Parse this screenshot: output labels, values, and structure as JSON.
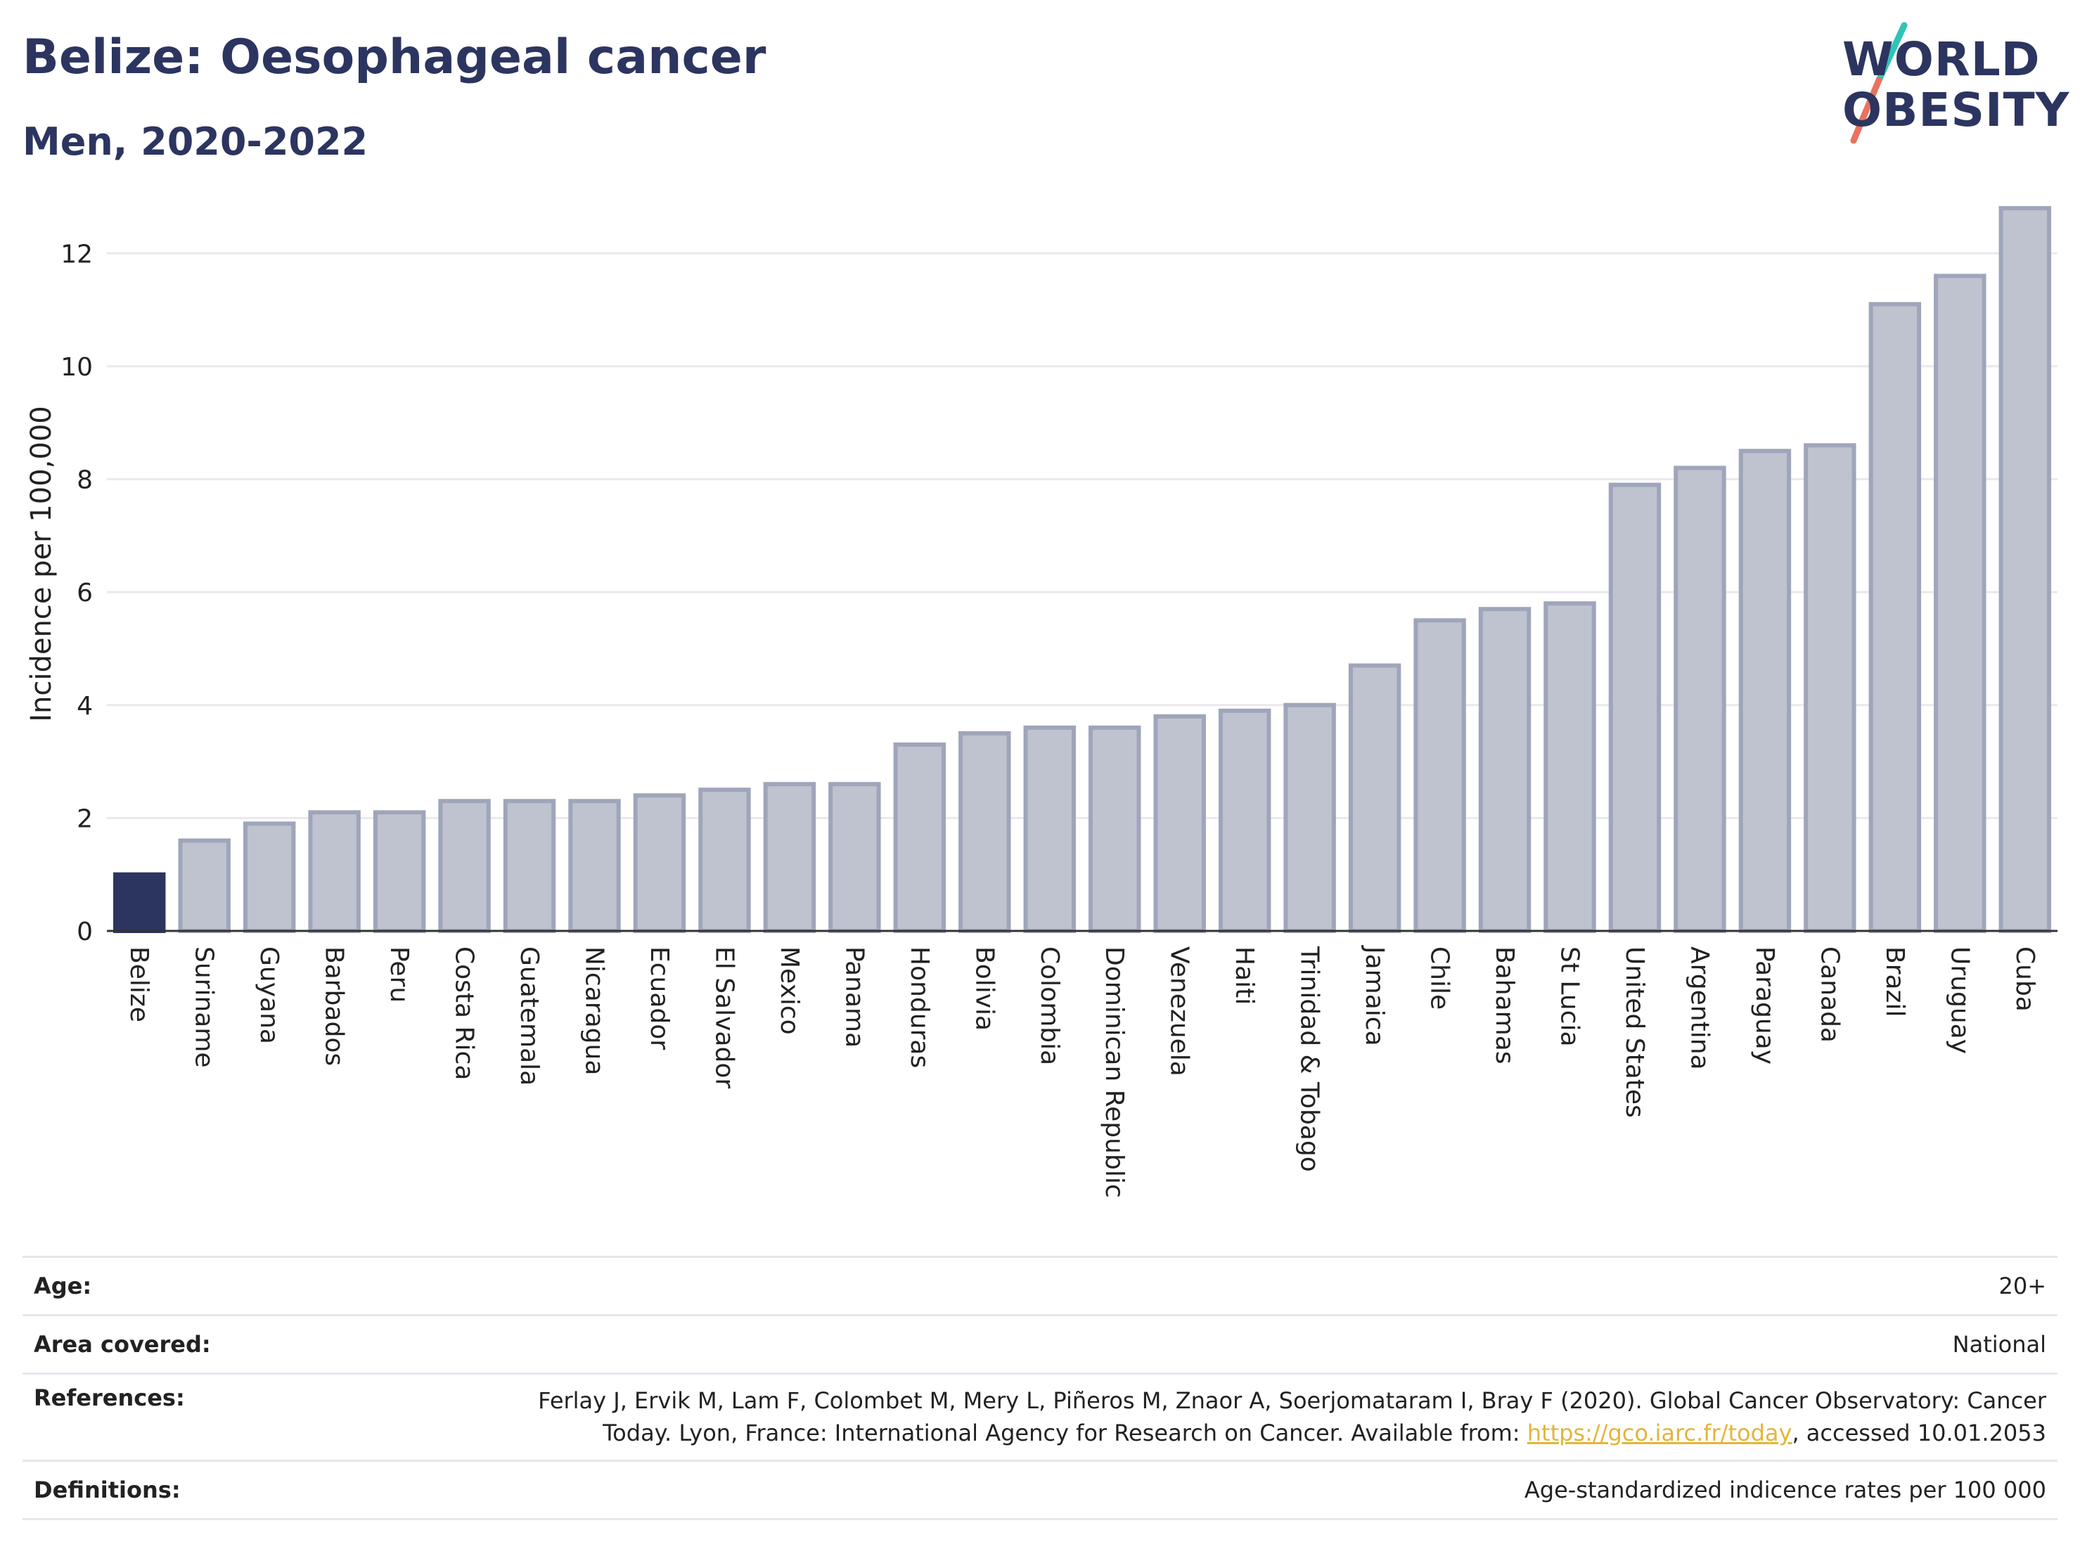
{
  "header": {
    "title": "Belize: Oesophageal cancer",
    "subtitle": "Men, 2020-2022"
  },
  "logo": {
    "line1": "WORLD",
    "line2": "OBESITY",
    "slash_colors": [
      "#2ec4b6",
      "#e9735e"
    ]
  },
  "colors": {
    "highlight": "#2c3560",
    "bar_fill": "#bfc3cf",
    "bar_stroke": "#9fa5ba",
    "grid": "#e8e8ee",
    "axis": "#333333"
  },
  "chart_data": {
    "type": "bar",
    "ylabel": "Incidence per 100,000",
    "ylim": [
      0,
      13
    ],
    "yticks": [
      0,
      2,
      4,
      6,
      8,
      10,
      12
    ],
    "grid": true,
    "highlight": "Belize",
    "categories": [
      "Belize",
      "Suriname",
      "Guyana",
      "Barbados",
      "Peru",
      "Costa Rica",
      "Guatemala",
      "Nicaragua",
      "Ecuador",
      "El Salvador",
      "Mexico",
      "Panama",
      "Honduras",
      "Bolivia",
      "Colombia",
      "Dominican Republic",
      "Venezuela",
      "Haiti",
      "Trinidad & Tobago",
      "Jamaica",
      "Chile",
      "Bahamas",
      "St Lucia",
      "United States",
      "Argentina",
      "Paraguay",
      "Canada",
      "Brazil",
      "Uruguay",
      "Cuba"
    ],
    "values": [
      1.0,
      1.6,
      1.9,
      2.1,
      2.1,
      2.3,
      2.3,
      2.3,
      2.4,
      2.5,
      2.6,
      2.6,
      3.3,
      3.5,
      3.6,
      3.6,
      3.8,
      3.9,
      4.0,
      4.7,
      5.5,
      5.7,
      5.8,
      7.9,
      8.2,
      8.5,
      8.6,
      11.1,
      11.6,
      12.8
    ]
  },
  "meta": {
    "age_label": "Age:",
    "age_value": "20+",
    "area_label": "Area covered:",
    "area_value": "National",
    "references_label": "References:",
    "references_line1": "Ferlay J, Ervik M, Lam F, Colombet M, Mery L, Piñeros M, Znaor A, Soerjomataram I, Bray F (2020). Global Cancer Observatory: Cancer",
    "references_line2_pre": "Today. Lyon, France: International Agency for Research on Cancer. Available from: ",
    "references_link": "https://gco.iarc.fr/today",
    "references_line2_post": ", accessed 10.01.2053",
    "definitions_label": "Definitions:",
    "definitions_value": "Age-standardized indicence rates per 100 000"
  }
}
